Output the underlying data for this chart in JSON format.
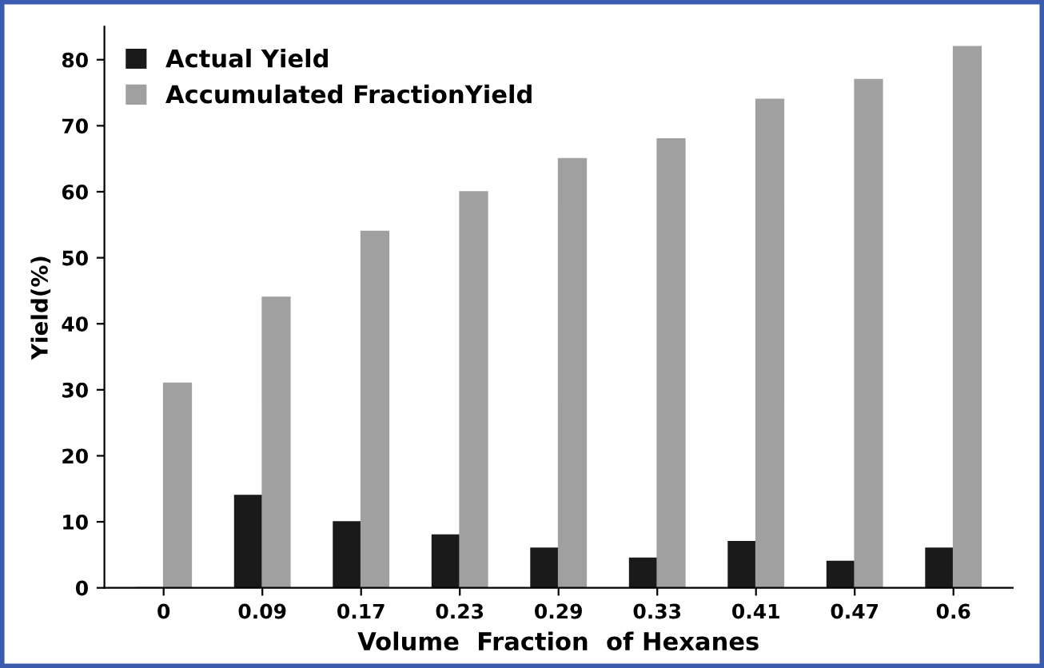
{
  "chart_data": {
    "type": "bar",
    "xlabel": "Volume  Fraction  of Hexanes",
    "ylabel": "Yield(%)",
    "categories": [
      "0",
      "0.09",
      "0.17",
      "0.23",
      "0.29",
      "0.33",
      "0.41",
      "0.47",
      "0.6"
    ],
    "series": [
      {
        "name": "Actual Yield",
        "color": "#1a1a1a",
        "values": [
          0,
          14,
          10,
          8,
          6,
          4.5,
          7,
          4,
          6
        ]
      },
      {
        "name": "Accumulated FractionYield",
        "color": "#a0a0a0",
        "values": [
          31,
          44,
          54,
          60,
          65,
          68,
          74,
          77,
          82
        ]
      }
    ],
    "ylim": [
      0,
      85
    ],
    "yticks": [
      0,
      10,
      20,
      30,
      40,
      50,
      60,
      70,
      80
    ],
    "grid": false,
    "legend": "top left"
  }
}
